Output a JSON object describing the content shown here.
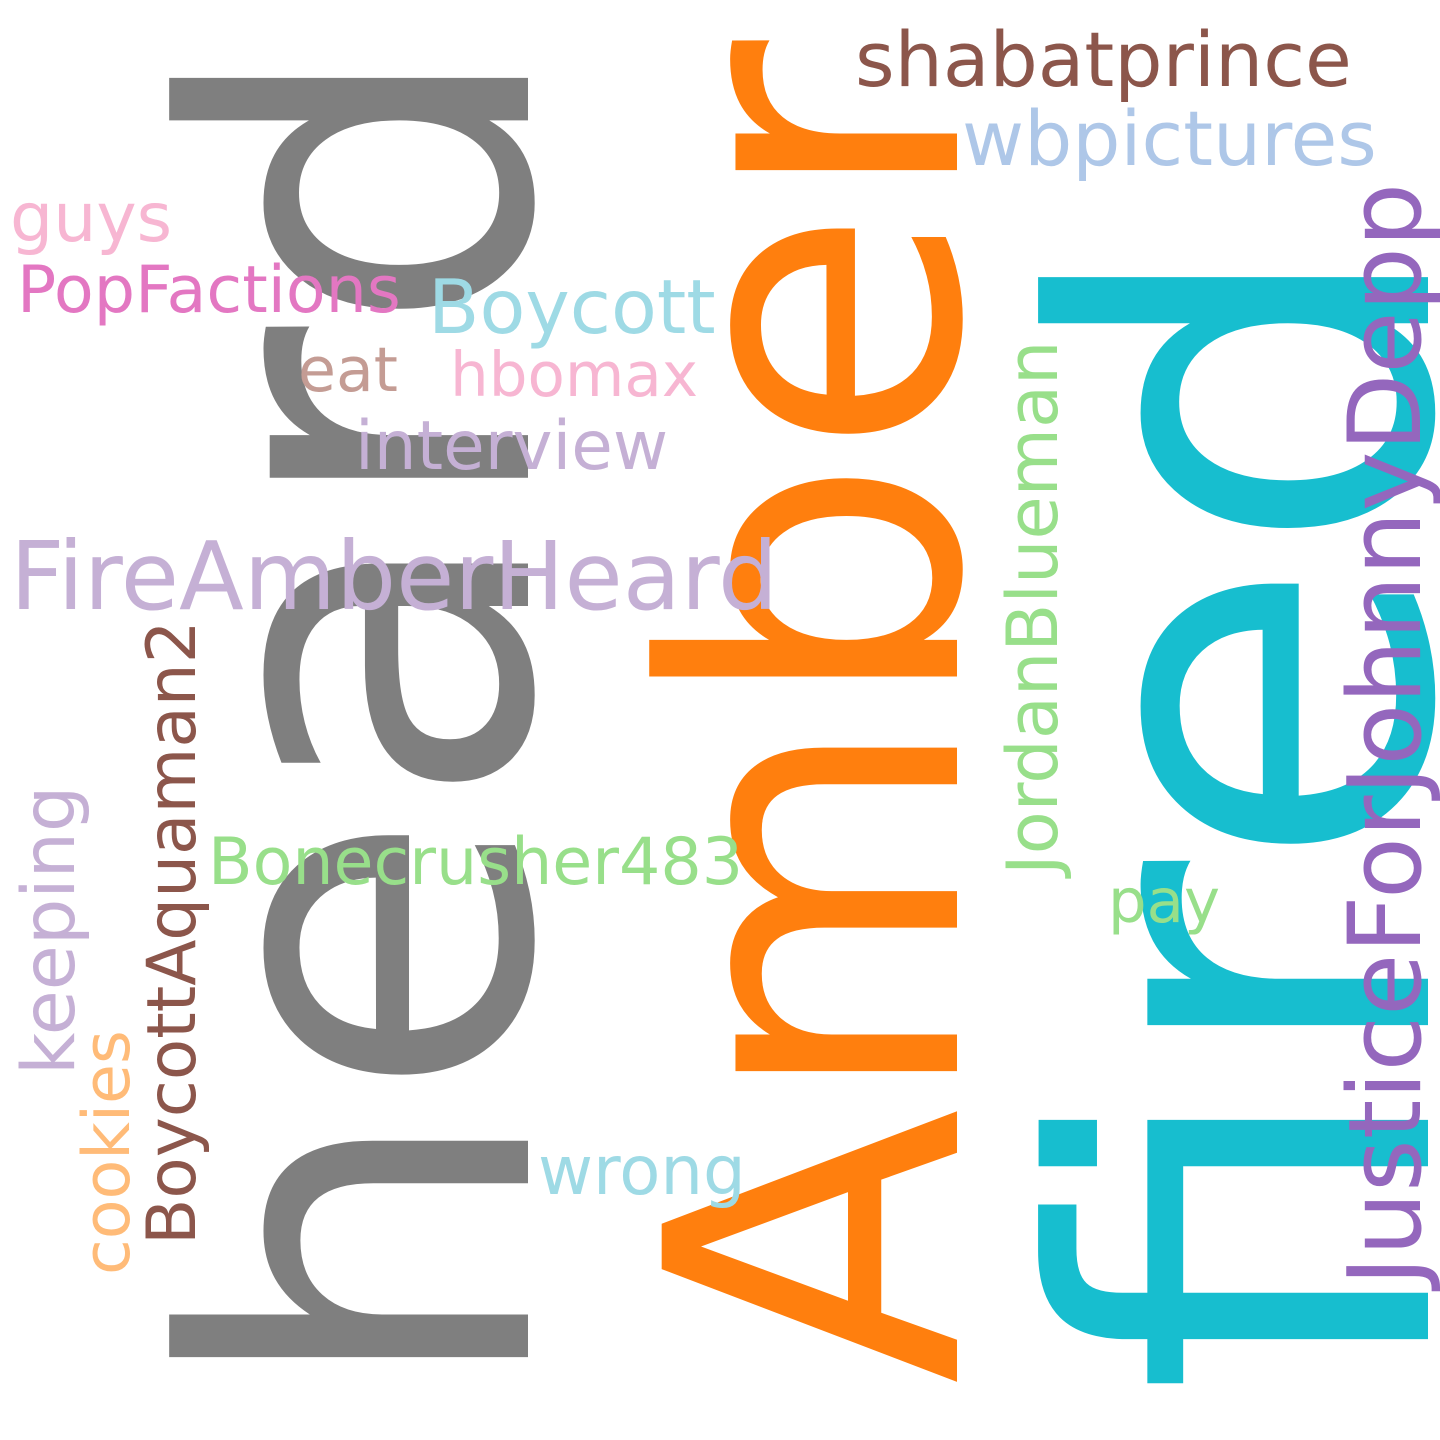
{
  "words": [
    {
      "key": "heard",
      "text": "heard",
      "color": "#7f7f7f",
      "orientation": "vertical"
    },
    {
      "key": "amber",
      "text": "Amber",
      "color": "#ff7f0e",
      "orientation": "vertical"
    },
    {
      "key": "fired",
      "text": "fired",
      "color": "#17becf",
      "orientation": "vertical"
    },
    {
      "key": "justicefor",
      "text": "JusticeForJohnnyDepp",
      "color": "#9467bd",
      "orientation": "vertical"
    },
    {
      "key": "fireamber",
      "text": "FireAmberHeard",
      "color": "#c5b0d5",
      "orientation": "horizontal"
    },
    {
      "key": "shabat",
      "text": "shabatprince",
      "color": "#8c564b",
      "orientation": "horizontal"
    },
    {
      "key": "wbpictures",
      "text": "wbpictures",
      "color": "#aec7e8",
      "orientation": "horizontal"
    },
    {
      "key": "boycott",
      "text": "Boycott",
      "color": "#9edae5",
      "orientation": "horizontal"
    },
    {
      "key": "hbomax",
      "text": "hbomax",
      "color": "#f7b6d2",
      "orientation": "horizontal"
    },
    {
      "key": "guys",
      "text": "guys",
      "color": "#f7b6d2",
      "orientation": "horizontal"
    },
    {
      "key": "popfactions",
      "text": "PopFactions",
      "color": "#e377c2",
      "orientation": "horizontal"
    },
    {
      "key": "eat",
      "text": "eat",
      "color": "#c49c94",
      "orientation": "horizontal"
    },
    {
      "key": "interview",
      "text": "interview",
      "color": "#c5b0d5",
      "orientation": "horizontal"
    },
    {
      "key": "boycottaquaman",
      "text": "BoycottAquaman2",
      "color": "#8c564b",
      "orientation": "vertical"
    },
    {
      "key": "bonecrusher",
      "text": "Bonecrusher483",
      "color": "#98df8a",
      "orientation": "horizontal"
    },
    {
      "key": "jordan",
      "text": "JordanBlueman",
      "color": "#98df8a",
      "orientation": "vertical"
    },
    {
      "key": "pay",
      "text": "pay",
      "color": "#98df8a",
      "orientation": "horizontal"
    },
    {
      "key": "keeping",
      "text": "keeping",
      "color": "#c5b0d5",
      "orientation": "vertical"
    },
    {
      "key": "cookies",
      "text": "cookies",
      "color": "#ffbb78",
      "orientation": "vertical"
    },
    {
      "key": "wrong",
      "text": "wrong",
      "color": "#9edae5",
      "orientation": "horizontal"
    }
  ]
}
